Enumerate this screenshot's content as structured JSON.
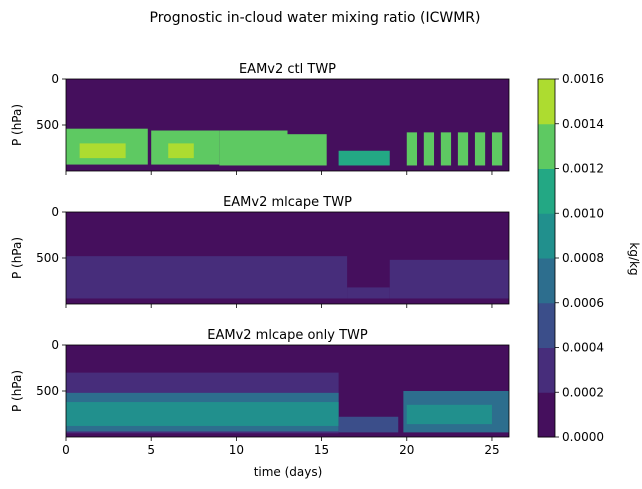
{
  "figure": {
    "suptitle": "Prognostic in-cloud water mixing ratio (ICWMR)",
    "xlabel": "time (days)",
    "ylabel": "P (hPa)"
  },
  "colorbar": {
    "label": "kg/kg",
    "levels": [
      0.0,
      0.0002,
      0.0004,
      0.0006,
      0.0008,
      0.001,
      0.0012,
      0.0014,
      0.0016
    ],
    "tick_labels": [
      "0.0000",
      "0.0002",
      "0.0004",
      "0.0006",
      "0.0008",
      "0.0010",
      "0.0012",
      "0.0014",
      "0.0016"
    ],
    "colors": [
      "#450f5d",
      "#472d7b",
      "#3b4e8a",
      "#2d6e8e",
      "#21908d",
      "#23a884",
      "#5ec962",
      "#addc30",
      "#fde725"
    ]
  },
  "chart_data": [
    {
      "type": "heatmap",
      "title": "EAMv2 ctl TWP",
      "xlabel": "",
      "ylabel": "P (hPa)",
      "xlim": [
        0,
        26
      ],
      "ylim": [
        1000,
        0
      ],
      "x_ticks": [
        0,
        5,
        10,
        15,
        20,
        25
      ],
      "y_ticks": [
        0,
        500
      ],
      "y_tick_labels": [
        "0",
        "500"
      ],
      "cloud_regions": [
        {
          "t": [
            0,
            4.8
          ],
          "p": [
            540,
            930
          ],
          "value": 0.0013
        },
        {
          "t": [
            0.8,
            3.5
          ],
          "p": [
            700,
            860
          ],
          "value": 0.0015
        },
        {
          "t": [
            5,
            9
          ],
          "p": [
            560,
            930
          ],
          "value": 0.0013
        },
        {
          "t": [
            6,
            7.5
          ],
          "p": [
            700,
            860
          ],
          "value": 0.0015
        },
        {
          "t": [
            9,
            13
          ],
          "p": [
            560,
            940
          ],
          "value": 0.0013
        },
        {
          "t": [
            13,
            15.3
          ],
          "p": [
            600,
            940
          ],
          "value": 0.0013
        },
        {
          "t": [
            16,
            19
          ],
          "p": [
            780,
            940
          ],
          "value": 0.0011
        },
        {
          "t": [
            20,
            20.6
          ],
          "p": [
            580,
            940
          ],
          "value": 0.0013
        },
        {
          "t": [
            21,
            21.6
          ],
          "p": [
            580,
            940
          ],
          "value": 0.0013
        },
        {
          "t": [
            22,
            22.6
          ],
          "p": [
            580,
            940
          ],
          "value": 0.0013
        },
        {
          "t": [
            23,
            23.6
          ],
          "p": [
            580,
            940
          ],
          "value": 0.0013
        },
        {
          "t": [
            24,
            24.6
          ],
          "p": [
            580,
            940
          ],
          "value": 0.0013
        },
        {
          "t": [
            25,
            25.6
          ],
          "p": [
            580,
            940
          ],
          "value": 0.0013
        }
      ]
    },
    {
      "type": "heatmap",
      "title": "EAMv2 mlcape TWP",
      "xlabel": "",
      "ylabel": "P (hPa)",
      "xlim": [
        0,
        26
      ],
      "ylim": [
        1000,
        0
      ],
      "x_ticks": [
        0,
        5,
        10,
        15,
        20,
        25
      ],
      "y_ticks": [
        0,
        500
      ],
      "y_tick_labels": [
        "0",
        "500"
      ],
      "cloud_regions": [
        {
          "t": [
            0,
            16.5
          ],
          "p": [
            480,
            940
          ],
          "value": 0.0003
        },
        {
          "t": [
            16.5,
            19
          ],
          "p": [
            820,
            940
          ],
          "value": 0.0003
        },
        {
          "t": [
            19,
            26
          ],
          "p": [
            520,
            940
          ],
          "value": 0.0003
        }
      ]
    },
    {
      "type": "heatmap",
      "title": "EAMv2 mlcape only TWP",
      "xlabel": "time (days)",
      "ylabel": "P (hPa)",
      "xlim": [
        0,
        26
      ],
      "ylim": [
        1000,
        0
      ],
      "x_ticks": [
        0,
        5,
        10,
        15,
        20,
        25
      ],
      "x_tick_labels": [
        "0",
        "5",
        "10",
        "15",
        "20",
        "25"
      ],
      "y_ticks": [
        0,
        500
      ],
      "y_tick_labels": [
        "0",
        "500"
      ],
      "cloud_regions": [
        {
          "t": [
            0,
            16
          ],
          "p": [
            300,
            960
          ],
          "value": 0.0003
        },
        {
          "t": [
            0,
            16
          ],
          "p": [
            520,
            940
          ],
          "value": 0.0007
        },
        {
          "t": [
            0,
            16
          ],
          "p": [
            620,
            880
          ],
          "value": 0.0009
        },
        {
          "t": [
            16,
            19.5
          ],
          "p": [
            780,
            950
          ],
          "value": 0.0005
        },
        {
          "t": [
            19.8,
            26
          ],
          "p": [
            500,
            950
          ],
          "value": 0.0007
        },
        {
          "t": [
            20,
            25
          ],
          "p": [
            650,
            860
          ],
          "value": 0.0009
        }
      ]
    }
  ]
}
